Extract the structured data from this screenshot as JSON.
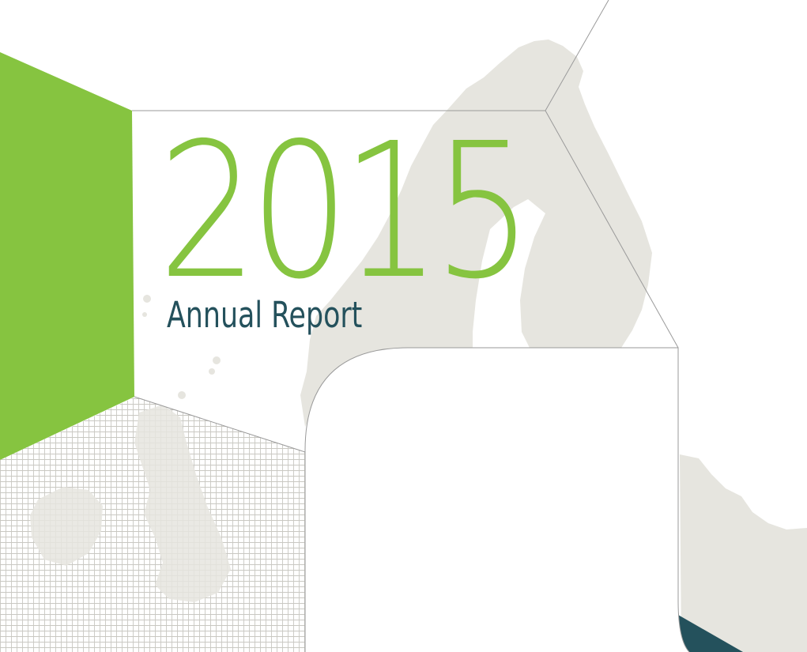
{
  "report": {
    "year": "2015",
    "title": "Annual Report"
  },
  "colors": {
    "accent_green": "#86c440",
    "dark_teal": "#24515c",
    "map_land": "#e6e5df",
    "hatch": "#c9c8c2",
    "outline": "#9a9a9a",
    "background": "#ffffff"
  }
}
